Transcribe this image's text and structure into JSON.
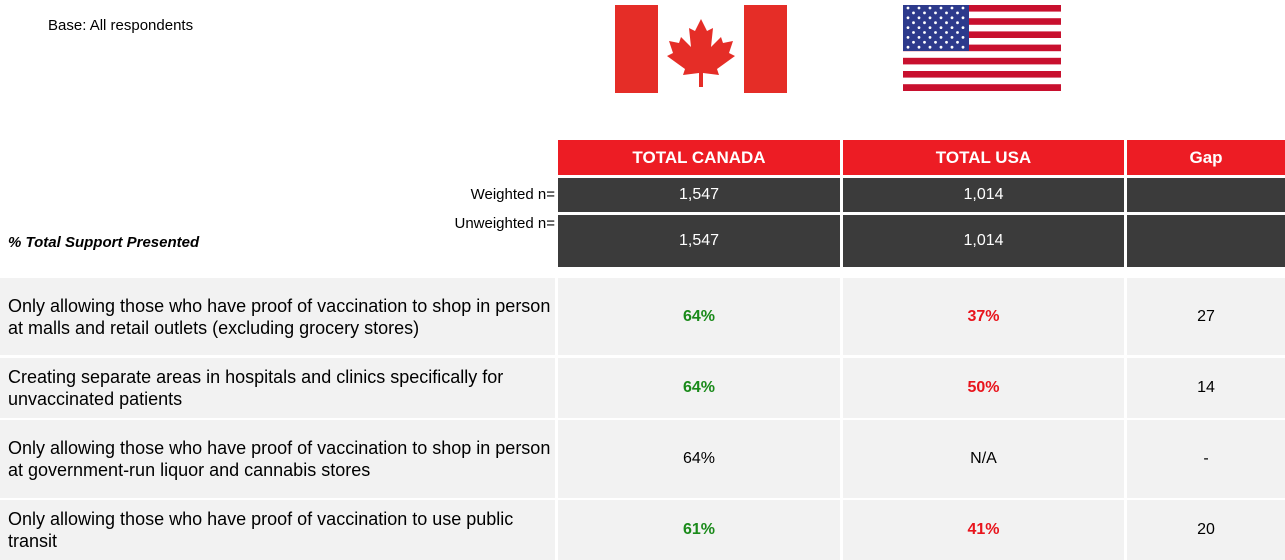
{
  "header": {
    "base": "Base: All respondents"
  },
  "table": {
    "columns": [
      "TOTAL CANADA",
      "TOTAL USA",
      "Gap"
    ],
    "weighted": {
      "label": "Weighted n=",
      "values": [
        "1,547",
        "1,014",
        ""
      ]
    },
    "unweighted": {
      "label": "Unweighted n=",
      "values": [
        "1,547",
        "1,014",
        ""
      ]
    },
    "section": "% Total Support Presented",
    "rows": [
      {
        "label": "Only allowing those who have proof of vaccination to shop in person at malls and retail outlets (excluding grocery stores)",
        "cells": [
          "64%",
          "37%",
          "27"
        ],
        "colors": [
          "#1a8a1a",
          "#e8141c",
          "#000000"
        ]
      },
      {
        "label": "Creating separate areas in hospitals and clinics specifically for unvaccinated patients",
        "cells": [
          "64%",
          "50%",
          "14"
        ],
        "colors": [
          "#1a8a1a",
          "#e8141c",
          "#000000"
        ]
      },
      {
        "label": "Only allowing those who have proof of vaccination to shop in person at government-run liquor and cannabis stores",
        "cells": [
          "64%",
          "N/A",
          "-"
        ],
        "colors": [
          "#000000",
          "#000000",
          "#000000"
        ]
      },
      {
        "label": "Only allowing those who have proof of vaccination to use public transit",
        "cells": [
          "61%",
          "41%",
          "20"
        ],
        "colors": [
          "#1a8a1a",
          "#e8141c",
          "#000000"
        ]
      }
    ]
  }
}
